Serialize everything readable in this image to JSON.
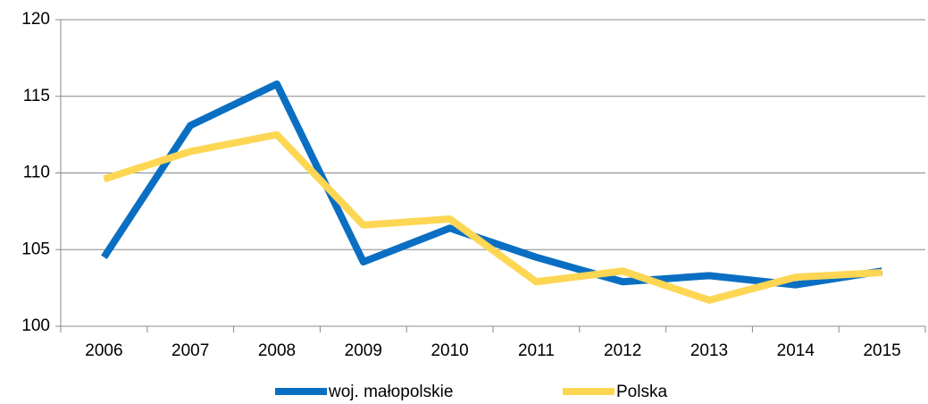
{
  "chart_data": {
    "type": "line",
    "categories": [
      "2006",
      "2007",
      "2008",
      "2009",
      "2010",
      "2011",
      "2012",
      "2013",
      "2014",
      "2015"
    ],
    "series": [
      {
        "name": "woj. małopolskie",
        "color": "#0a6fc2",
        "values": [
          104.5,
          113.1,
          115.8,
          104.2,
          106.4,
          104.5,
          102.9,
          103.3,
          102.7,
          103.6
        ]
      },
      {
        "name": "Polska",
        "color": "#fdd654",
        "values": [
          109.6,
          111.4,
          112.5,
          106.6,
          107.0,
          102.9,
          103.6,
          101.7,
          103.2,
          103.5
        ]
      }
    ],
    "ylim": [
      100,
      120
    ],
    "yticks": [
      100,
      105,
      110,
      115,
      120
    ],
    "grid": true,
    "legend": "bottom"
  }
}
